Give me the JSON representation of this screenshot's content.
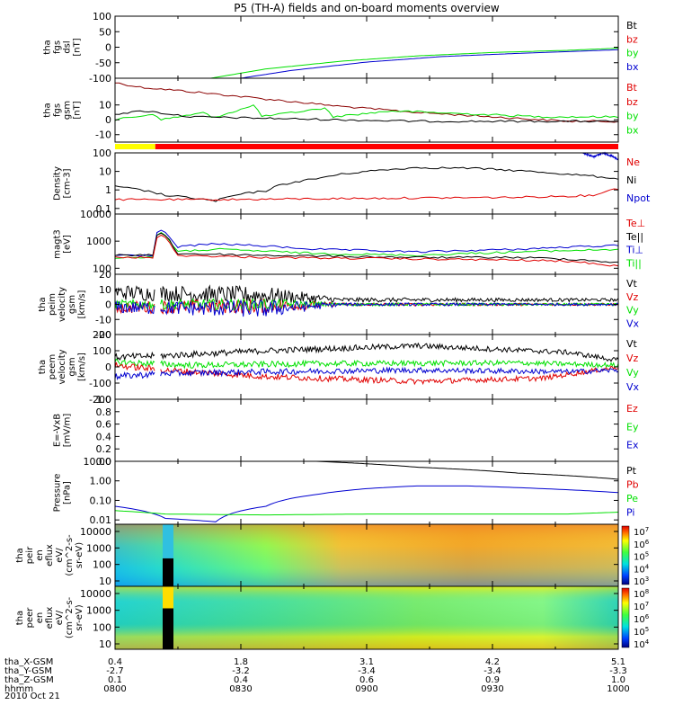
{
  "title": "P5 (TH-A) fields and on-board moments overview",
  "colors": {
    "black": "#000000",
    "red": "#e00000",
    "green": "#00e000",
    "blue": "#0000d0",
    "darkred": "#8b0000",
    "orange": "#e08000"
  },
  "chart_data": [
    {
      "type": "line",
      "name": "fgs-dsl",
      "ylabel": [
        "tha",
        "fgs",
        "dsl",
        "[nT]"
      ],
      "yticks": [
        "100",
        "50",
        "0",
        "-50",
        "-100"
      ],
      "ylim": [
        -100,
        100
      ],
      "legend": [
        {
          "label": "Bt",
          "color": "#000000"
        },
        {
          "label": "bz",
          "color": "#e00000"
        },
        {
          "label": "by",
          "color": "#00e000"
        },
        {
          "label": "bx",
          "color": "#0000d0"
        }
      ],
      "series": [
        {
          "name": "by",
          "color": "#00e000",
          "t": [
            0.19,
            0.3,
            0.45,
            0.6,
            0.75,
            0.9,
            1.0
          ],
          "v": [
            -100,
            -70,
            -45,
            -28,
            -17,
            -10,
            -3
          ]
        },
        {
          "name": "bx",
          "color": "#0000d0",
          "t": [
            0.25,
            0.35,
            0.5,
            0.65,
            0.8,
            0.92,
            1.0
          ],
          "v": [
            -100,
            -75,
            -48,
            -30,
            -20,
            -13,
            -8
          ]
        }
      ]
    },
    {
      "type": "line",
      "name": "fgs-gsm",
      "ylabel": [
        "tha",
        "fgs",
        "gsm",
        "[nT]"
      ],
      "yticks": [
        "10",
        "0",
        "-10"
      ],
      "ylim": [
        -15,
        28
      ],
      "legend": [
        {
          "label": "Bt",
          "color": "#e00000"
        },
        {
          "label": "bz",
          "color": "#e00000"
        },
        {
          "label": "by",
          "color": "#00e000"
        },
        {
          "label": "bx",
          "color": "#00e000"
        }
      ],
      "series": [
        {
          "name": "Bt",
          "color": "#8b0000",
          "t": [
            0,
            0.05,
            0.15,
            0.3,
            0.45,
            0.6,
            0.75,
            0.9,
            1.0
          ],
          "v": [
            25,
            22,
            19,
            14,
            9,
            5,
            2,
            -1,
            -1
          ]
        },
        {
          "name": "by",
          "color": "#00e000",
          "t": [
            0,
            0.08,
            0.09,
            0.18,
            0.19,
            0.28,
            0.29,
            0.42,
            0.43,
            0.55,
            0.7,
            0.85,
            1.0
          ],
          "v": [
            0,
            4,
            0,
            5,
            1,
            10,
            2,
            8,
            2,
            6,
            4,
            2,
            2
          ]
        },
        {
          "name": "bx",
          "color": "#000000",
          "t": [
            0,
            0.06,
            0.15,
            0.3,
            0.45,
            0.6,
            0.75,
            0.9,
            1.0
          ],
          "v": [
            4,
            6,
            2,
            1,
            0,
            -1,
            -1,
            -1,
            -1
          ]
        }
      ],
      "flag_bar": [
        {
          "from": 0,
          "to": 0.08,
          "color": "#ffff00"
        },
        {
          "from": 0.08,
          "to": 1,
          "color": "#ff0000"
        }
      ]
    },
    {
      "type": "line",
      "name": "density",
      "scale": "log",
      "ylabel": [
        "Density",
        "[cm-3]"
      ],
      "yticks": [
        "100",
        "10",
        "1",
        "0.1"
      ],
      "ylim": [
        0.05,
        100
      ],
      "legend": [
        {
          "label": "Ne",
          "color": "#e00000"
        },
        {
          "label": "Ni",
          "color": "#000000"
        },
        {
          "label": "Npot",
          "color": "#0000d0"
        }
      ],
      "series": [
        {
          "name": "Ni",
          "color": "#000000",
          "t": [
            0,
            0.1,
            0.2,
            0.3,
            0.4,
            0.5,
            0.6,
            0.7,
            0.8,
            0.9,
            1.0
          ],
          "v": [
            1.5,
            0.5,
            0.25,
            0.9,
            4,
            10,
            16,
            15,
            11,
            7,
            4
          ]
        },
        {
          "name": "Ne",
          "color": "#e00000",
          "t": [
            0,
            0.2,
            0.5,
            0.8,
            0.95,
            1.0
          ],
          "v": [
            0.3,
            0.3,
            0.35,
            0.4,
            0.5,
            1.2
          ]
        },
        {
          "name": "Npot",
          "color": "#0000d0",
          "t": [
            0.93,
            0.95,
            0.97,
            1.0
          ],
          "v": [
            100,
            60,
            100,
            40
          ]
        }
      ]
    },
    {
      "type": "line",
      "name": "temperature",
      "scale": "log",
      "ylabel": [
        "magt3",
        "[eV]"
      ],
      "yticks": [
        "10000",
        "1000",
        "100"
      ],
      "ylim": [
        60,
        10000
      ],
      "legend": [
        {
          "label": "Te⊥",
          "color": "#e00000"
        },
        {
          "label": "Te||",
          "color": "#000000"
        },
        {
          "label": "Ti⊥",
          "color": "#0000d0"
        },
        {
          "label": "Ti||",
          "color": "#00e000"
        }
      ],
      "series": [
        {
          "name": "Ti⊥",
          "color": "#0000d0",
          "t": [
            0,
            0.08,
            0.085,
            0.12,
            0.2,
            0.4,
            0.6,
            0.8,
            1.0
          ],
          "v": [
            300,
            300,
            3000,
            600,
            800,
            500,
            400,
            500,
            700
          ]
        },
        {
          "name": "Ti||",
          "color": "#00e000",
          "t": [
            0,
            0.08,
            0.085,
            0.12,
            0.2,
            0.4,
            0.6,
            0.8,
            1.0
          ],
          "v": [
            250,
            250,
            2500,
            400,
            500,
            350,
            300,
            400,
            500
          ]
        },
        {
          "name": "Te||",
          "color": "#000000",
          "t": [
            0,
            0.08,
            0.085,
            0.12,
            0.3,
            0.6,
            0.8,
            0.9,
            1.0
          ],
          "v": [
            300,
            300,
            2500,
            350,
            300,
            250,
            250,
            220,
            160
          ]
        },
        {
          "name": "Te⊥",
          "color": "#e00000",
          "t": [
            0,
            0.08,
            0.085,
            0.12,
            0.3,
            0.6,
            0.8,
            0.9,
            1.0
          ],
          "v": [
            250,
            250,
            2000,
            300,
            250,
            220,
            200,
            180,
            120
          ]
        }
      ]
    },
    {
      "type": "line",
      "name": "peim-velocity",
      "ylabel": [
        "tha",
        "peim",
        "velocity",
        "gsm",
        "[km/s]"
      ],
      "yticks": [
        "20",
        "10",
        "0",
        "-10",
        "-20"
      ],
      "ylim": [
        -20,
        20
      ],
      "legend": [
        {
          "label": "Vt",
          "color": "#000000"
        },
        {
          "label": "Vz",
          "color": "#e00000"
        },
        {
          "label": "Vy",
          "color": "#00e000"
        },
        {
          "label": "Vx",
          "color": "#0000d0"
        }
      ],
      "series": [
        {
          "name": "Vt",
          "color": "#000000",
          "base": [
            [
              0,
              8
            ],
            [
              0.3,
              6
            ],
            [
              0.45,
              3
            ],
            [
              1.0,
              3
            ]
          ],
          "noise": [
            [
              0,
              5
            ],
            [
              0.3,
              6
            ],
            [
              0.45,
              1.5
            ],
            [
              1.0,
              1
            ]
          ]
        },
        {
          "name": "Vz",
          "color": "#e00000",
          "base": [
            [
              0,
              -2
            ],
            [
              0.3,
              -1
            ],
            [
              0.45,
              0
            ],
            [
              1.0,
              0
            ]
          ],
          "noise": [
            [
              0,
              4
            ],
            [
              0.3,
              5
            ],
            [
              0.45,
              1
            ],
            [
              1.0,
              0.8
            ]
          ]
        },
        {
          "name": "Vy",
          "color": "#00e000",
          "base": [
            [
              0,
              0
            ],
            [
              1.0,
              0
            ]
          ],
          "noise": [
            [
              0,
              3
            ],
            [
              0.3,
              4
            ],
            [
              0.45,
              1
            ],
            [
              1.0,
              0.8
            ]
          ]
        },
        {
          "name": "Vx",
          "color": "#0000d0",
          "base": [
            [
              0,
              -2
            ],
            [
              0.3,
              -3
            ],
            [
              0.45,
              0
            ],
            [
              1.0,
              0
            ]
          ],
          "noise": [
            [
              0,
              4
            ],
            [
              0.3,
              6
            ],
            [
              0.45,
              1
            ],
            [
              1.0,
              0.8
            ]
          ]
        }
      ]
    },
    {
      "type": "line",
      "name": "peem-velocity",
      "ylabel": [
        "tha",
        "peem",
        "velocity",
        "gsm",
        "[km/s]"
      ],
      "yticks": [
        "200",
        "100",
        "0",
        "-100",
        "-200"
      ],
      "ylim": [
        -200,
        200
      ],
      "legend": [
        {
          "label": "Vt",
          "color": "#000000"
        },
        {
          "label": "Vz",
          "color": "#e00000"
        },
        {
          "label": "Vy",
          "color": "#00e000"
        },
        {
          "label": "Vx",
          "color": "#0000d0"
        }
      ],
      "series": [
        {
          "name": "Vt",
          "color": "#000000",
          "base": [
            [
              0,
              60
            ],
            [
              0.1,
              70
            ],
            [
              0.3,
              100
            ],
            [
              0.6,
              130
            ],
            [
              0.9,
              90
            ],
            [
              1.0,
              40
            ]
          ],
          "noise": [
            [
              0,
              20
            ],
            [
              1.0,
              15
            ]
          ]
        },
        {
          "name": "Vy",
          "color": "#00e000",
          "base": [
            [
              0,
              30
            ],
            [
              0.15,
              10
            ],
            [
              0.4,
              20
            ],
            [
              0.8,
              25
            ],
            [
              1.0,
              10
            ]
          ],
          "noise": [
            [
              0,
              20
            ],
            [
              1.0,
              15
            ]
          ]
        },
        {
          "name": "Vz",
          "color": "#e00000",
          "base": [
            [
              0,
              10
            ],
            [
              0.1,
              -20
            ],
            [
              0.3,
              -60
            ],
            [
              0.6,
              -90
            ],
            [
              0.85,
              -70
            ],
            [
              1.0,
              0
            ]
          ],
          "noise": [
            [
              0,
              20
            ],
            [
              1.0,
              15
            ]
          ]
        },
        {
          "name": "Vx",
          "color": "#0000d0",
          "base": [
            [
              0,
              -60
            ],
            [
              0.1,
              -40
            ],
            [
              0.3,
              -30
            ],
            [
              0.6,
              -20
            ],
            [
              0.9,
              -30
            ],
            [
              1.0,
              -20
            ]
          ],
          "noise": [
            [
              0,
              20
            ],
            [
              1.0,
              15
            ]
          ]
        }
      ]
    },
    {
      "type": "line",
      "name": "efield",
      "ylabel": [
        "E=-VxB",
        "[mV/m]"
      ],
      "yticks": [
        "1.0",
        "0.8",
        "0.6",
        "0.4",
        "0.2",
        "0.0"
      ],
      "ylim": [
        0,
        1
      ],
      "legend": [
        {
          "label": "Ez",
          "color": "#e00000"
        },
        {
          "label": "Ey",
          "color": "#00e000"
        },
        {
          "label": "Ex",
          "color": "#0000d0"
        }
      ],
      "series": []
    },
    {
      "type": "line",
      "name": "pressure",
      "scale": "log",
      "ylabel": [
        "Pressure",
        "[nPa]"
      ],
      "yticks": [
        "10.00",
        "1.00",
        "0.10",
        "0.01"
      ],
      "ylim": [
        0.006,
        10
      ],
      "legend": [
        {
          "label": "Pt",
          "color": "#000000"
        },
        {
          "label": "Pb",
          "color": "#e00000"
        },
        {
          "label": "Pe",
          "color": "#00e000"
        },
        {
          "label": "Pi",
          "color": "#0000d0"
        }
      ],
      "series": [
        {
          "name": "Pt",
          "color": "#000000",
          "t": [
            0.4,
            0.6,
            0.8,
            1.0
          ],
          "v": [
            10,
            5,
            2.5,
            1.2
          ]
        },
        {
          "name": "Pi",
          "color": "#0000d0",
          "t": [
            0,
            0.1,
            0.2,
            0.3,
            0.4,
            0.5,
            0.6,
            0.7,
            0.8,
            0.9,
            1.0
          ],
          "v": [
            0.05,
            0.012,
            0.008,
            0.05,
            0.2,
            0.4,
            0.55,
            0.55,
            0.45,
            0.35,
            0.25
          ]
        },
        {
          "name": "Pe",
          "color": "#00e000",
          "t": [
            0,
            0.1,
            0.3,
            0.5,
            0.7,
            0.9,
            1.0
          ],
          "v": [
            0.03,
            0.02,
            0.018,
            0.02,
            0.02,
            0.02,
            0.025
          ]
        }
      ]
    },
    {
      "type": "heatmap",
      "name": "peir-spectrogram",
      "ylabel": [
        "tha",
        "peir",
        "en",
        "eflux",
        "eV/",
        "(cm^2-s-",
        "sr-eV)"
      ],
      "yticks": [
        "10000",
        "1000",
        "100",
        "10"
      ],
      "colorbar": {
        "labels": [
          "10^7",
          "10^6",
          "10^5",
          "10^4",
          "10^3"
        ]
      }
    },
    {
      "type": "heatmap",
      "name": "peer-spectrogram",
      "ylabel": [
        "tha",
        "peer",
        "en",
        "eflux",
        "eV/",
        "(cm^2-s-",
        "sr-eV)"
      ],
      "yticks": [
        "10000",
        "1000",
        "100",
        "10"
      ],
      "colorbar": {
        "labels": [
          "10^8",
          "10^7",
          "10^6",
          "10^5",
          "10^4"
        ]
      }
    }
  ],
  "footer": {
    "rows": [
      {
        "label": "tha_X-GSM",
        "values": [
          "0.4",
          "1.8",
          "3.1",
          "4.2",
          "5.1"
        ]
      },
      {
        "label": "tha_Y-GSM",
        "values": [
          "-2.7",
          "-3.2",
          "-3.4",
          "-3.4",
          "-3.3"
        ]
      },
      {
        "label": "tha_Z-GSM",
        "values": [
          "0.1",
          "0.4",
          "0.6",
          "0.9",
          "1.0"
        ]
      },
      {
        "label": "hhmm",
        "values": [
          "0800",
          "0830",
          "0900",
          "0930",
          "1000"
        ]
      }
    ],
    "date": "2010 Oct 21"
  }
}
